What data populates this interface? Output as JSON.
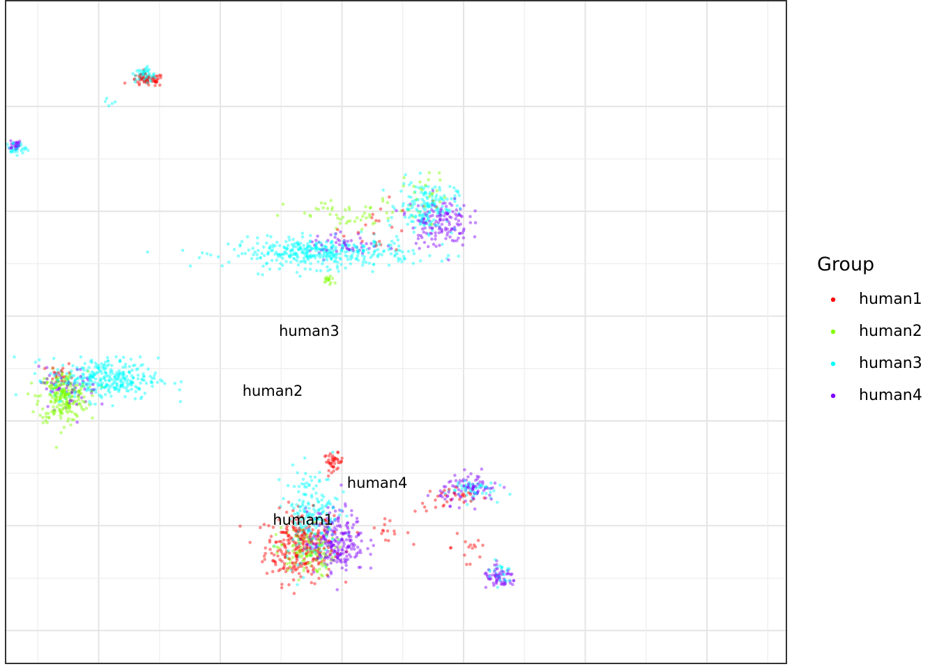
{
  "chart_data": {
    "type": "scatter",
    "title": "",
    "xlabel": "",
    "ylabel": "",
    "xlim": [
      -5,
      1.5
    ],
    "ylim": [
      -2.8,
      3.6
    ],
    "grid": true,
    "legend": {
      "title": "Group",
      "position": "right",
      "entries": [
        {
          "name": "human1",
          "color": "#FF0000"
        },
        {
          "name": "human2",
          "color": "#80FF00"
        },
        {
          "name": "human3",
          "color": "#00FFFF"
        },
        {
          "name": "human4",
          "color": "#8000FF"
        }
      ]
    },
    "cluster_labels": [
      {
        "text": "human3",
        "x": -1.27,
        "y": 0.85
      },
      {
        "text": "human2",
        "x": -1.57,
        "y": 0.28
      },
      {
        "text": "human4",
        "x": -0.71,
        "y": -0.6
      },
      {
        "text": "human1",
        "x": -1.32,
        "y": -0.95
      }
    ],
    "series": [
      {
        "name": "human1",
        "clusters": [
          {
            "x": -1.35,
            "y": -1.2,
            "sx": 0.14,
            "sy": 0.17,
            "n": 260
          },
          {
            "x": -1.07,
            "y": -0.39,
            "sx": 0.04,
            "sy": 0.04,
            "n": 40
          },
          {
            "x": -0.68,
            "y": -1.05,
            "sx": 0.12,
            "sy": 0.05,
            "n": 15
          },
          {
            "x": -0.1,
            "y": -0.75,
            "sx": 0.15,
            "sy": 0.06,
            "n": 30
          },
          {
            "x": 0.06,
            "y": -1.2,
            "sx": 0.08,
            "sy": 0.15,
            "n": 15
          },
          {
            "x": -2.6,
            "y": 3.25,
            "sx": 0.07,
            "sy": 0.03,
            "n": 60
          },
          {
            "x": -4.8,
            "y": -1.05,
            "sx": 0.06,
            "sy": 0.04,
            "n": 35
          },
          {
            "x": -3.3,
            "y": 0.45,
            "sx": 0.05,
            "sy": 0.05,
            "n": 20
          },
          {
            "x": -0.7,
            "y": 1.85,
            "sx": 0.15,
            "sy": 0.12,
            "n": 20
          }
        ]
      },
      {
        "name": "human2",
        "clusters": [
          {
            "x": -3.29,
            "y": 0.23,
            "sx": 0.1,
            "sy": 0.12,
            "n": 230
          },
          {
            "x": -1.3,
            "y": -1.25,
            "sx": 0.12,
            "sy": 0.12,
            "n": 120
          },
          {
            "x": -0.9,
            "y": 1.95,
            "sx": 0.28,
            "sy": 0.08,
            "n": 50
          },
          {
            "x": -1.1,
            "y": 1.35,
            "sx": 0.04,
            "sy": 0.03,
            "n": 15
          },
          {
            "x": -5.6,
            "y": -1.05,
            "sx": 0.08,
            "sy": 0.05,
            "n": 25
          },
          {
            "x": -0.3,
            "y": 2.2,
            "sx": 0.1,
            "sy": 0.1,
            "n": 25
          }
        ]
      },
      {
        "name": "human3",
        "clusters": [
          {
            "x": -1.17,
            "y": 1.6,
            "sx": 0.38,
            "sy": 0.07,
            "n": 380
          },
          {
            "x": -0.3,
            "y": 2.05,
            "sx": 0.12,
            "sy": 0.12,
            "n": 160
          },
          {
            "x": -2.95,
            "y": 0.4,
            "sx": 0.22,
            "sy": 0.1,
            "n": 320
          },
          {
            "x": -1.25,
            "y": -0.9,
            "sx": 0.11,
            "sy": 0.22,
            "n": 200
          },
          {
            "x": -2.62,
            "y": 3.3,
            "sx": 0.04,
            "sy": 0.04,
            "n": 55
          },
          {
            "x": -3.68,
            "y": 2.6,
            "sx": 0.04,
            "sy": 0.03,
            "n": 30
          },
          {
            "x": -5.55,
            "y": -0.95,
            "sx": 0.2,
            "sy": 0.04,
            "n": 70
          },
          {
            "x": 0.05,
            "y": -0.65,
            "sx": 0.1,
            "sy": 0.05,
            "n": 50
          },
          {
            "x": 0.3,
            "y": -1.45,
            "sx": 0.06,
            "sy": 0.06,
            "n": 25
          },
          {
            "x": -2.9,
            "y": 3.05,
            "sx": 0.02,
            "sy": 0.02,
            "n": 5
          }
        ]
      },
      {
        "name": "human4",
        "clusters": [
          {
            "x": -1.05,
            "y": -1.15,
            "sx": 0.12,
            "sy": 0.15,
            "n": 230
          },
          {
            "x": -0.2,
            "y": 1.9,
            "sx": 0.12,
            "sy": 0.12,
            "n": 140
          },
          {
            "x": -0.98,
            "y": 1.68,
            "sx": 0.15,
            "sy": 0.06,
            "n": 50
          },
          {
            "x": -3.25,
            "y": 0.3,
            "sx": 0.12,
            "sy": 0.1,
            "n": 60
          },
          {
            "x": 0.05,
            "y": -0.65,
            "sx": 0.12,
            "sy": 0.07,
            "n": 90
          },
          {
            "x": 0.3,
            "y": -1.5,
            "sx": 0.07,
            "sy": 0.05,
            "n": 60
          },
          {
            "x": -5.75,
            "y": -1.05,
            "sx": 0.05,
            "sy": 0.04,
            "n": 40
          },
          {
            "x": -4.85,
            "y": -1.05,
            "sx": 0.05,
            "sy": 0.04,
            "n": 20
          },
          {
            "x": -3.69,
            "y": 2.63,
            "sx": 0.03,
            "sy": 0.02,
            "n": 25
          }
        ]
      }
    ]
  }
}
